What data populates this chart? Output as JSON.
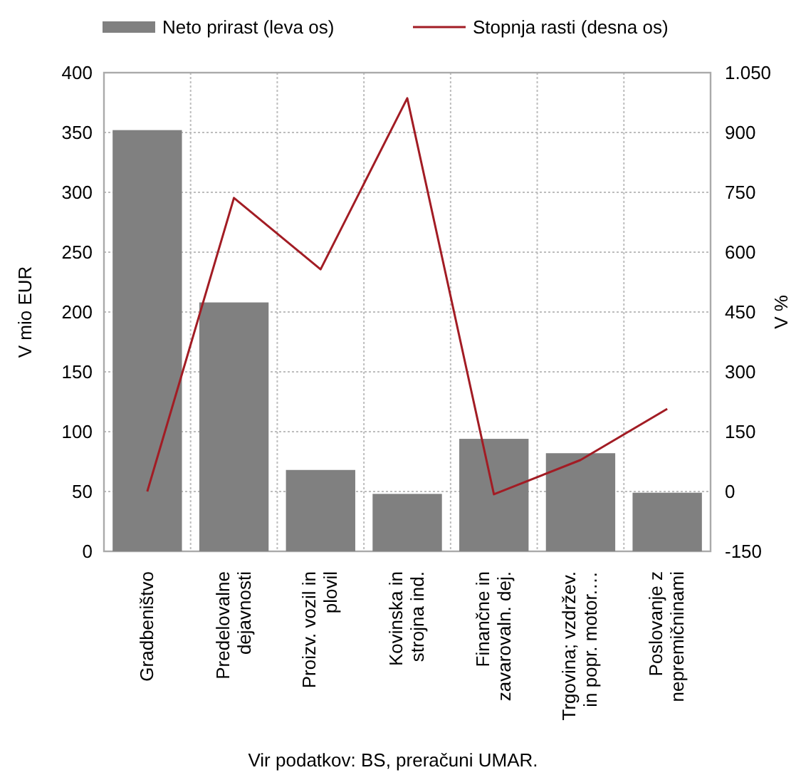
{
  "chart_data": {
    "type": "bar",
    "categories": [
      "Gradbeništvo",
      "Predelovalne dejavnosti",
      "Proizv. vozil in plovil",
      "Kovinska in strojna ind.",
      "Finančne in zavarovaln. dej.",
      "Trgovina; vzdržev. in popr. motor.…",
      "Poslovanje z nepremičninami"
    ],
    "series": [
      {
        "name": "Neto prirast (leva os)",
        "color": "#808080",
        "values": [
          352,
          208,
          68,
          48,
          94,
          82,
          49
        ]
      },
      {
        "name": "Stopnja rasti (desna os)",
        "type": "line",
        "axis": "y2",
        "color": "#a21c24",
        "values": [
          0,
          736,
          557,
          986,
          -7,
          79,
          207
        ]
      }
    ],
    "ylabel": "V mio EUR",
    "y2label": "V %",
    "ylim": [
      0,
      400
    ],
    "yticks": [
      0,
      50,
      100,
      150,
      200,
      250,
      300,
      350,
      400
    ],
    "y2lim": [
      -150,
      1050
    ],
    "y2ticks": [
      {
        "value": -150,
        "label": "-150"
      },
      0,
      150,
      300,
      450,
      600,
      750,
      900,
      {
        "value": 1050,
        "label": "1.050"
      }
    ],
    "grid": true,
    "legend": "top",
    "marker": "none",
    "line_style": "solid",
    "annotations": [
      "Vir podatkov: BS, preračuni UMAR."
    ]
  }
}
